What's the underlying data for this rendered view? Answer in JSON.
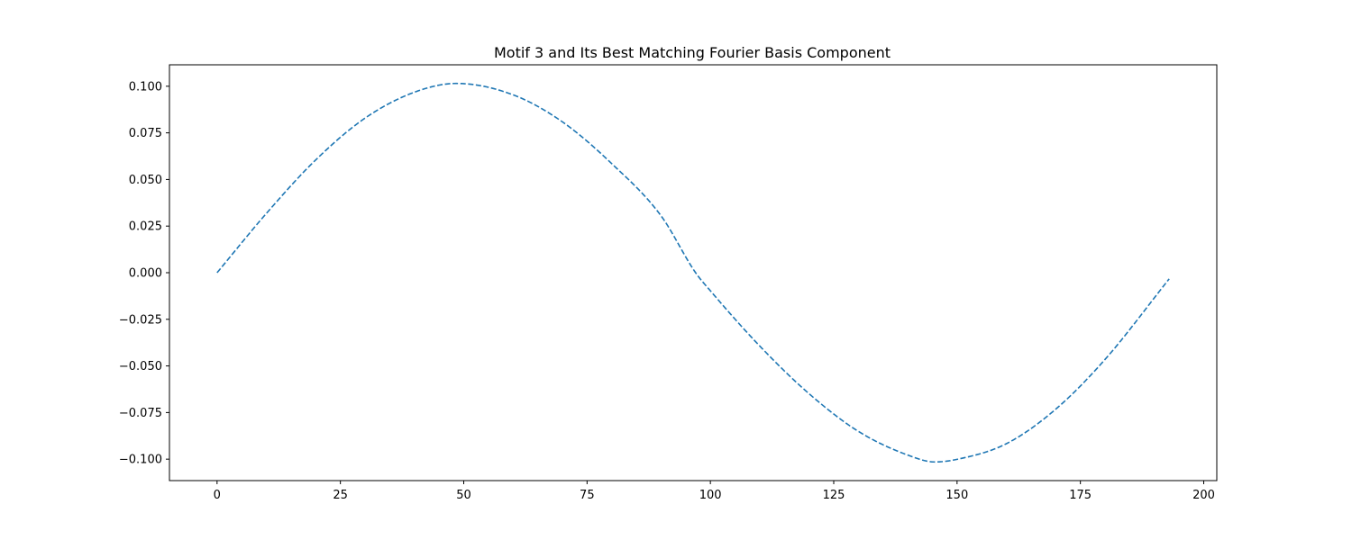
{
  "chart_data": {
    "type": "line",
    "title": "Motif 3 and Its Best Matching Fourier Basis Component",
    "xlabel": "",
    "ylabel": "",
    "xlim": [
      -9.65,
      202.65
    ],
    "ylim": [
      -0.1115,
      0.1115
    ],
    "x_ticks": [
      0,
      25,
      50,
      75,
      100,
      125,
      150,
      175,
      200
    ],
    "x_tick_labels": [
      "0",
      "25",
      "50",
      "75",
      "100",
      "125",
      "150",
      "175",
      "200"
    ],
    "y_ticks": [
      0.1,
      0.075,
      0.05,
      0.025,
      0.0,
      -0.025,
      -0.05,
      -0.075,
      -0.1
    ],
    "y_tick_labels": [
      "0.100",
      "0.075",
      "0.050",
      "0.025",
      "0.000",
      "−0.025",
      "−0.050",
      "−0.075",
      "−0.100"
    ],
    "grid": false,
    "series": [
      {
        "line_style": "dashed",
        "color": "#1f77b4",
        "x": [
          0,
          10,
          20,
          30,
          40,
          48.5,
          60,
          70,
          80,
          90,
          97,
          100,
          110,
          120,
          130,
          140,
          145.5,
          150,
          160,
          170,
          180,
          193
        ],
        "y": [
          0.0,
          0.0318,
          0.0605,
          0.0829,
          0.0968,
          0.1015,
          0.0954,
          0.0809,
          0.0585,
          0.0305,
          0.0,
          -0.0097,
          -0.0393,
          -0.0649,
          -0.0851,
          -0.0978,
          -0.1015,
          -0.1001,
          -0.0917,
          -0.0732,
          -0.0465,
          -0.0033
        ]
      }
    ]
  }
}
